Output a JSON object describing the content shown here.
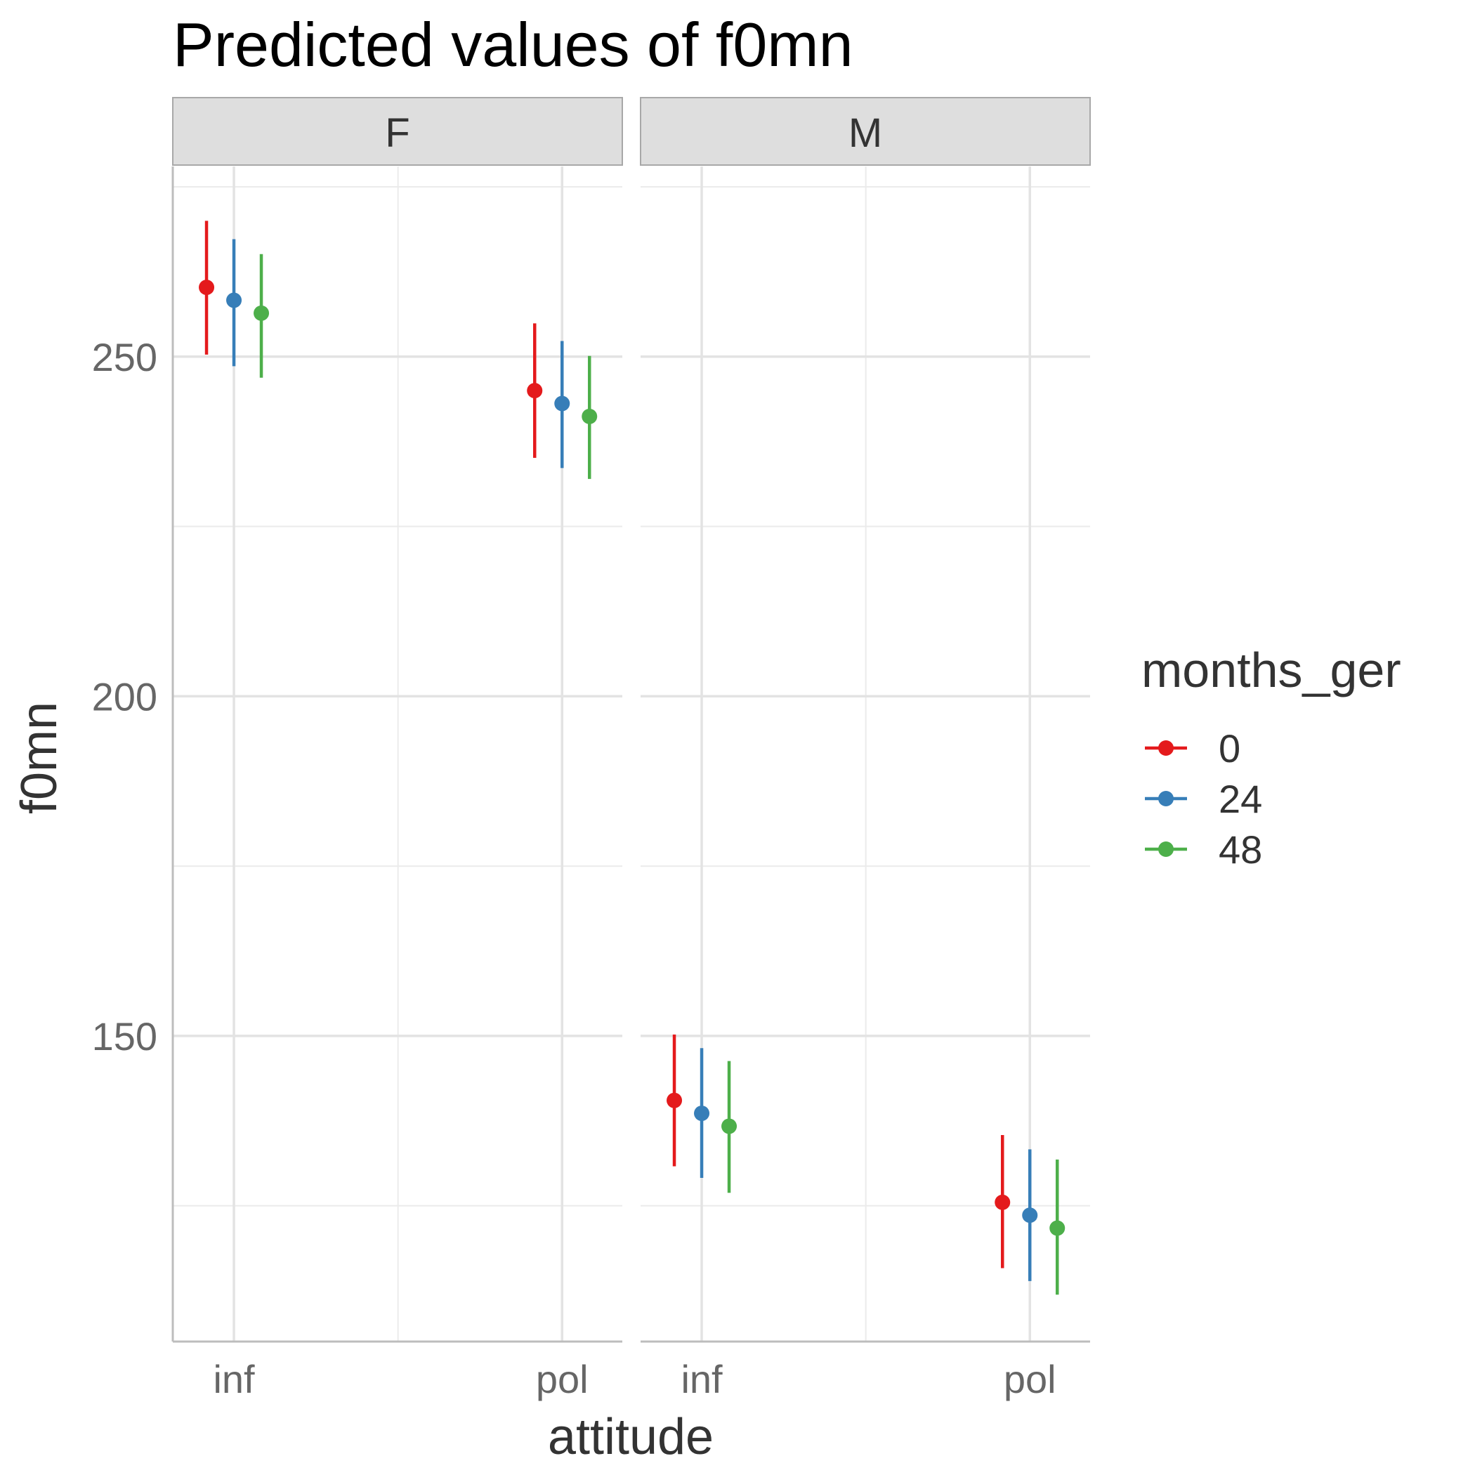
{
  "chart_data": {
    "type": "scatter",
    "subtype": "pointrange",
    "title": "Predicted values of f0mn",
    "xlabel": "attitude",
    "ylabel": "f0mn",
    "facets": [
      "F",
      "M"
    ],
    "categories": [
      "inf",
      "pol"
    ],
    "yticks": [
      150,
      200,
      250
    ],
    "ylim": [
      105,
      278
    ],
    "grid": true,
    "legend": {
      "title": "months_ger",
      "position": "right"
    },
    "series": [
      {
        "name": "0",
        "color": "#E41A1C",
        "points": [
          {
            "facet": "F",
            "x": "inf",
            "y": 260.2,
            "lower": 250.3,
            "upper": 270.0
          },
          {
            "facet": "F",
            "x": "pol",
            "y": 245.0,
            "lower": 235.1,
            "upper": 254.9
          },
          {
            "facet": "M",
            "x": "inf",
            "y": 140.5,
            "lower": 130.8,
            "upper": 150.2
          },
          {
            "facet": "M",
            "x": "pol",
            "y": 125.5,
            "lower": 115.8,
            "upper": 135.4
          }
        ]
      },
      {
        "name": "24",
        "color": "#377EB8",
        "points": [
          {
            "facet": "F",
            "x": "inf",
            "y": 258.3,
            "lower": 248.6,
            "upper": 267.3
          },
          {
            "facet": "F",
            "x": "pol",
            "y": 243.1,
            "lower": 233.6,
            "upper": 252.3
          },
          {
            "facet": "M",
            "x": "inf",
            "y": 138.6,
            "lower": 129.1,
            "upper": 148.2
          },
          {
            "facet": "M",
            "x": "pol",
            "y": 123.6,
            "lower": 113.9,
            "upper": 133.3
          }
        ]
      },
      {
        "name": "48",
        "color": "#4DAF4A",
        "points": [
          {
            "facet": "F",
            "x": "inf",
            "y": 256.4,
            "lower": 246.9,
            "upper": 265.1
          },
          {
            "facet": "F",
            "x": "pol",
            "y": 241.2,
            "lower": 232.0,
            "upper": 250.1
          },
          {
            "facet": "M",
            "x": "inf",
            "y": 136.7,
            "lower": 126.9,
            "upper": 146.3
          },
          {
            "facet": "M",
            "x": "pol",
            "y": 121.7,
            "lower": 111.9,
            "upper": 131.8
          }
        ]
      }
    ]
  }
}
